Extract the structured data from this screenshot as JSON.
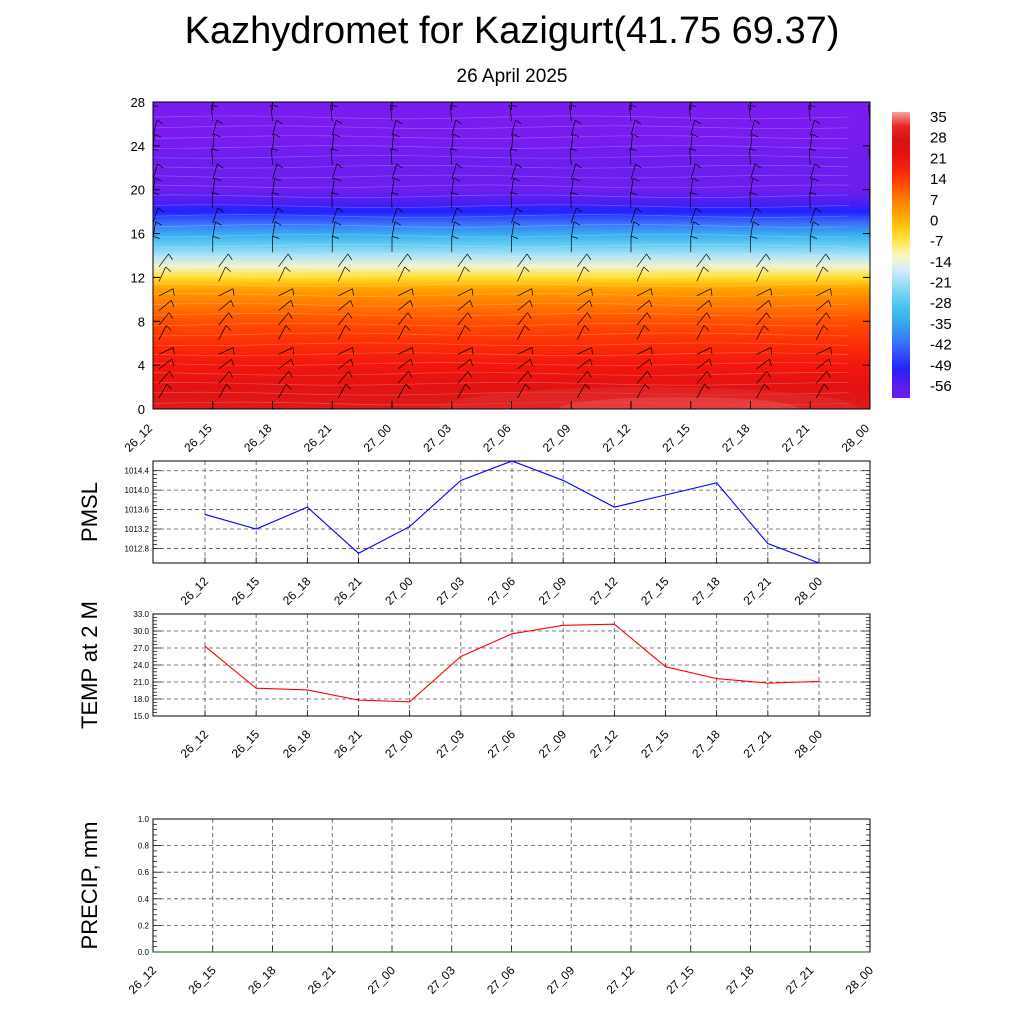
{
  "header": {
    "title": "Kazhydromet for Kazigurt(41.75 69.37)",
    "subtitle": "26 April 2025"
  },
  "time_labels": [
    "26_12",
    "26_15",
    "26_18",
    "26_21",
    "27_00",
    "27_03",
    "27_06",
    "27_09",
    "27_12",
    "27_15",
    "27_18",
    "27_21",
    "28_00"
  ],
  "chart_data": [
    {
      "type": "heatmap",
      "name": "temperature-height-section",
      "x": [
        "26_12",
        "26_15",
        "26_18",
        "26_21",
        "27_00",
        "27_03",
        "27_06",
        "27_09",
        "27_12",
        "27_15",
        "27_18",
        "27_21",
        "28_00"
      ],
      "ylim": [
        0,
        28
      ],
      "yticks": [
        0,
        4,
        8,
        12,
        16,
        20,
        24,
        28
      ],
      "colorbar": {
        "labels": [
          "35",
          "28",
          "21",
          "14",
          "7",
          "0",
          "-7",
          "-14",
          "-21",
          "-28",
          "-35",
          "-42",
          "-49",
          "-56"
        ],
        "range": [
          -63,
          38
        ]
      },
      "profile": {
        "height": [
          0,
          2,
          4,
          6,
          8,
          10,
          11,
          12,
          13,
          14,
          15,
          16,
          17,
          18,
          19,
          20,
          21,
          22,
          23,
          24,
          25,
          28
        ],
        "value": [
          30,
          24,
          20,
          16,
          12,
          6,
          2,
          -6,
          -14,
          -21,
          -28,
          -36,
          -44,
          -52,
          -58,
          -61,
          -63,
          -61,
          -62,
          -66,
          -70,
          -70
        ]
      },
      "wind_barbs": true
    },
    {
      "type": "line",
      "name": "PMSL",
      "ylabel": "PMSL",
      "x": [
        "26_12",
        "26_15",
        "26_18",
        "26_21",
        "27_00",
        "27_03",
        "27_06",
        "27_09",
        "27_12",
        "27_15",
        "27_18",
        "27_21",
        "28_00"
      ],
      "values": [
        1013.5,
        1013.2,
        1013.65,
        1012.7,
        1013.25,
        1014.2,
        1014.6,
        1014.2,
        1013.65,
        1013.9,
        1014.15,
        1012.9,
        1012.5
      ],
      "ylim": [
        1012.5,
        1014.6
      ],
      "yticks": [
        1012.8,
        1013.2,
        1013.6,
        1014.0,
        1014.4
      ],
      "ytick_labels": [
        "1012.8",
        "1013.2",
        "1013.6",
        "1014.0",
        "1014.4"
      ],
      "color": "#0000ff",
      "grid": true
    },
    {
      "type": "line",
      "name": "TEMP at 2 M",
      "ylabel": "TEMP at 2 M",
      "x": [
        "26_12",
        "26_15",
        "26_18",
        "26_21",
        "27_00",
        "27_03",
        "27_06",
        "27_09",
        "27_12",
        "27_15",
        "27_18",
        "27_21",
        "28_00"
      ],
      "values": [
        27.3,
        19.9,
        19.6,
        17.8,
        17.5,
        25.5,
        29.5,
        31.0,
        31.2,
        23.7,
        21.6,
        20.8,
        21.1
      ],
      "ylim": [
        15.0,
        33.0
      ],
      "yticks": [
        15,
        18,
        21,
        24,
        27,
        30,
        33
      ],
      "ytick_labels": [
        "15.0",
        "18.0",
        "21.0",
        "24.0",
        "27.0",
        "30.0",
        "33.0"
      ],
      "color": "#ff0000",
      "grid": true
    },
    {
      "type": "line",
      "name": "PRECIP, mm",
      "ylabel": "PRECIP, mm",
      "x": [
        "26_12",
        "26_15",
        "26_18",
        "26_21",
        "27_00",
        "27_03",
        "27_06",
        "27_09",
        "27_12",
        "27_15",
        "27_18",
        "27_21",
        "28_00"
      ],
      "values": [
        0,
        0,
        0,
        0,
        0,
        0,
        0,
        0,
        0,
        0,
        0,
        0,
        0
      ],
      "ylim": [
        0.0,
        1.0
      ],
      "yticks": [
        0,
        0.2,
        0.4,
        0.6,
        0.8,
        1.0
      ],
      "ytick_labels": [
        "0.0",
        "0.2",
        "0.4",
        "0.6",
        "0.8",
        "1.0"
      ],
      "color": "#006400",
      "grid": true
    }
  ]
}
